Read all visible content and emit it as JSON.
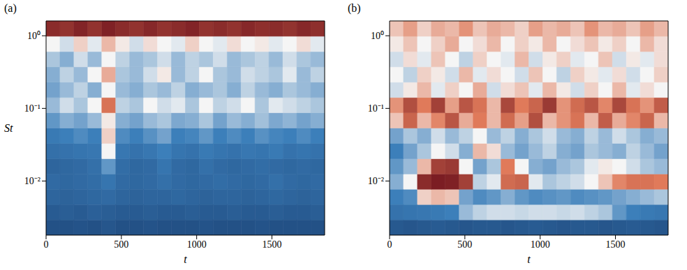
{
  "chart_data": [
    {
      "type": "heatmap",
      "title": "(a)",
      "x_label": "t",
      "y_label": "St",
      "log": "y",
      "xlim": [
        0,
        1850
      ],
      "xticks": [
        0,
        500,
        1000,
        1500
      ],
      "ylim": [
        0.0018,
        1.6
      ],
      "yticks": [
        {
          "value": 0.01,
          "label": "10⁻²"
        },
        {
          "value": 0.1,
          "label": "10⁻¹"
        },
        {
          "value": 1,
          "label": "10⁰"
        }
      ],
      "zlim": [
        0,
        1
      ],
      "x_edges": [
        0,
        92.5,
        185,
        277.5,
        370,
        462.5,
        555,
        647.5,
        740,
        832.5,
        925,
        1017.5,
        1110,
        1202.5,
        1295,
        1387.5,
        1480,
        1572.5,
        1665,
        1757.5,
        1850
      ],
      "y_edges": [
        0.0018,
        0.00292,
        0.00475,
        0.00771,
        0.0125,
        0.0203,
        0.033,
        0.0536,
        0.0871,
        0.1414,
        0.2297,
        0.373,
        0.606,
        0.985,
        1.6
      ],
      "cells": [
        [
          0.12,
          0.12,
          0.13,
          0.12,
          0.14,
          0.12,
          0.12,
          0.13,
          0.12,
          0.12,
          0.12,
          0.13,
          0.12,
          0.12,
          0.12,
          0.13,
          0.12,
          0.12,
          0.12,
          0.12
        ],
        [
          0.16,
          0.17,
          0.16,
          0.18,
          0.17,
          0.16,
          0.16,
          0.17,
          0.16,
          0.16,
          0.17,
          0.16,
          0.16,
          0.17,
          0.16,
          0.16,
          0.17,
          0.16,
          0.16,
          0.17
        ],
        [
          0.2,
          0.19,
          0.2,
          0.21,
          0.22,
          0.2,
          0.19,
          0.2,
          0.2,
          0.21,
          0.2,
          0.19,
          0.2,
          0.2,
          0.19,
          0.2,
          0.21,
          0.2,
          0.19,
          0.2
        ],
        [
          0.22,
          0.21,
          0.22,
          0.23,
          0.26,
          0.22,
          0.21,
          0.22,
          0.24,
          0.22,
          0.21,
          0.22,
          0.23,
          0.22,
          0.21,
          0.22,
          0.24,
          0.22,
          0.21,
          0.22
        ],
        [
          0.2,
          0.21,
          0.22,
          0.24,
          0.34,
          0.23,
          0.21,
          0.22,
          0.26,
          0.22,
          0.21,
          0.24,
          0.22,
          0.21,
          0.22,
          0.23,
          0.22,
          0.21,
          0.22,
          0.21
        ],
        [
          0.24,
          0.25,
          0.26,
          0.27,
          0.5,
          0.27,
          0.25,
          0.27,
          0.3,
          0.26,
          0.25,
          0.28,
          0.26,
          0.25,
          0.27,
          0.26,
          0.28,
          0.25,
          0.26,
          0.25
        ],
        [
          0.28,
          0.3,
          0.32,
          0.3,
          0.56,
          0.32,
          0.3,
          0.33,
          0.36,
          0.3,
          0.31,
          0.34,
          0.3,
          0.32,
          0.3,
          0.33,
          0.31,
          0.3,
          0.32,
          0.3
        ],
        [
          0.34,
          0.38,
          0.36,
          0.4,
          0.52,
          0.38,
          0.36,
          0.4,
          0.42,
          0.37,
          0.38,
          0.42,
          0.36,
          0.4,
          0.38,
          0.41,
          0.37,
          0.39,
          0.36,
          0.38
        ],
        [
          0.4,
          0.46,
          0.42,
          0.5,
          0.72,
          0.44,
          0.42,
          0.5,
          0.46,
          0.48,
          0.42,
          0.5,
          0.44,
          0.46,
          0.5,
          0.42,
          0.48,
          0.46,
          0.44,
          0.42
        ],
        [
          0.36,
          0.4,
          0.44,
          0.38,
          0.5,
          0.4,
          0.38,
          0.42,
          0.4,
          0.44,
          0.38,
          0.4,
          0.42,
          0.38,
          0.44,
          0.4,
          0.38,
          0.42,
          0.4,
          0.38
        ],
        [
          0.38,
          0.44,
          0.4,
          0.5,
          0.62,
          0.42,
          0.4,
          0.46,
          0.52,
          0.4,
          0.44,
          0.5,
          0.42,
          0.4,
          0.46,
          0.44,
          0.42,
          0.48,
          0.4,
          0.44
        ],
        [
          0.42,
          0.38,
          0.46,
          0.4,
          0.5,
          0.44,
          0.4,
          0.42,
          0.46,
          0.4,
          0.44,
          0.42,
          0.46,
          0.4,
          0.42,
          0.44,
          0.4,
          0.46,
          0.42,
          0.4
        ],
        [
          0.5,
          0.46,
          0.56,
          0.48,
          0.6,
          0.52,
          0.46,
          0.54,
          0.5,
          0.48,
          0.56,
          0.5,
          0.48,
          0.54,
          0.5,
          0.52,
          0.48,
          0.5,
          0.54,
          0.48
        ],
        [
          0.92,
          0.9,
          0.94,
          0.9,
          0.95,
          0.92,
          0.9,
          0.93,
          0.9,
          0.92,
          0.94,
          0.9,
          0.92,
          0.9,
          0.93,
          0.91,
          0.92,
          0.9,
          0.93,
          0.91
        ]
      ]
    },
    {
      "type": "heatmap",
      "title": "(b)",
      "x_label": "t",
      "log": "y",
      "xlim": [
        0,
        1850
      ],
      "xticks": [
        0,
        500,
        1000,
        1500
      ],
      "ylim": [
        0.0018,
        1.6
      ],
      "yticks": [
        {
          "value": 0.01,
          "label": "10⁻²"
        },
        {
          "value": 0.1,
          "label": "10⁻¹"
        },
        {
          "value": 1,
          "label": "10⁰"
        }
      ],
      "zlim": [
        0,
        1
      ],
      "x_edges": [
        0,
        92.5,
        185,
        277.5,
        370,
        462.5,
        555,
        647.5,
        740,
        832.5,
        925,
        1017.5,
        1110,
        1202.5,
        1295,
        1387.5,
        1480,
        1572.5,
        1665,
        1757.5,
        1850
      ],
      "y_edges": [
        0.0018,
        0.00292,
        0.00475,
        0.00771,
        0.0125,
        0.0203,
        0.033,
        0.0536,
        0.0871,
        0.1414,
        0.2297,
        0.373,
        0.606,
        0.985,
        1.6
      ],
      "cells": [
        [
          0.15,
          0.14,
          0.15,
          0.16,
          0.15,
          0.14,
          0.15,
          0.15,
          0.14,
          0.15,
          0.16,
          0.15,
          0.14,
          0.15,
          0.15,
          0.14,
          0.15,
          0.16,
          0.15,
          0.14
        ],
        [
          0.25,
          0.26,
          0.27,
          0.28,
          0.3,
          0.4,
          0.44,
          0.46,
          0.46,
          0.45,
          0.46,
          0.46,
          0.45,
          0.46,
          0.44,
          0.42,
          0.34,
          0.3,
          0.28,
          0.27
        ],
        [
          0.3,
          0.32,
          0.56,
          0.6,
          0.58,
          0.36,
          0.32,
          0.34,
          0.38,
          0.34,
          0.32,
          0.33,
          0.34,
          0.32,
          0.33,
          0.34,
          0.36,
          0.38,
          0.4,
          0.42
        ],
        [
          0.38,
          0.5,
          0.92,
          0.96,
          0.95,
          0.86,
          0.44,
          0.48,
          0.74,
          0.76,
          0.48,
          0.42,
          0.44,
          0.46,
          0.5,
          0.58,
          0.68,
          0.72,
          0.72,
          0.7
        ],
        [
          0.34,
          0.4,
          0.6,
          0.86,
          0.88,
          0.5,
          0.36,
          0.42,
          0.7,
          0.5,
          0.38,
          0.36,
          0.4,
          0.42,
          0.48,
          0.52,
          0.5,
          0.46,
          0.42,
          0.4
        ],
        [
          0.3,
          0.36,
          0.42,
          0.5,
          0.46,
          0.38,
          0.6,
          0.54,
          0.4,
          0.36,
          0.4,
          0.44,
          0.38,
          0.36,
          0.42,
          0.4,
          0.38,
          0.44,
          0.4,
          0.36
        ],
        [
          0.36,
          0.42,
          0.38,
          0.46,
          0.4,
          0.44,
          0.5,
          0.4,
          0.44,
          0.38,
          0.42,
          0.46,
          0.4,
          0.38,
          0.44,
          0.4,
          0.46,
          0.42,
          0.38,
          0.4
        ],
        [
          0.58,
          0.76,
          0.6,
          0.68,
          0.8,
          0.62,
          0.7,
          0.6,
          0.74,
          0.64,
          0.82,
          0.6,
          0.66,
          0.72,
          0.6,
          0.78,
          0.62,
          0.68,
          0.76,
          0.6
        ],
        [
          0.66,
          0.82,
          0.7,
          0.86,
          0.64,
          0.8,
          0.72,
          0.6,
          0.84,
          0.7,
          0.76,
          0.88,
          0.66,
          0.74,
          0.8,
          0.68,
          0.84,
          0.72,
          0.66,
          0.78
        ],
        [
          0.46,
          0.52,
          0.6,
          0.48,
          0.56,
          0.5,
          0.62,
          0.46,
          0.54,
          0.58,
          0.48,
          0.6,
          0.52,
          0.46,
          0.56,
          0.5,
          0.6,
          0.48,
          0.54,
          0.5
        ],
        [
          0.5,
          0.44,
          0.56,
          0.52,
          0.46,
          0.6,
          0.48,
          0.54,
          0.5,
          0.46,
          0.58,
          0.5,
          0.44,
          0.56,
          0.52,
          0.48,
          0.54,
          0.46,
          0.5,
          0.56
        ],
        [
          0.46,
          0.54,
          0.48,
          0.58,
          0.5,
          0.44,
          0.56,
          0.5,
          0.48,
          0.6,
          0.46,
          0.52,
          0.56,
          0.48,
          0.5,
          0.58,
          0.46,
          0.52,
          0.48,
          0.54
        ],
        [
          0.52,
          0.58,
          0.5,
          0.56,
          0.62,
          0.5,
          0.54,
          0.6,
          0.5,
          0.56,
          0.52,
          0.6,
          0.5,
          0.54,
          0.58,
          0.52,
          0.56,
          0.5,
          0.6,
          0.54
        ],
        [
          0.58,
          0.64,
          0.56,
          0.62,
          0.6,
          0.66,
          0.58,
          0.62,
          0.6,
          0.56,
          0.64,
          0.6,
          0.62,
          0.58,
          0.66,
          0.6,
          0.62,
          0.58,
          0.64,
          0.6
        ]
      ]
    }
  ]
}
